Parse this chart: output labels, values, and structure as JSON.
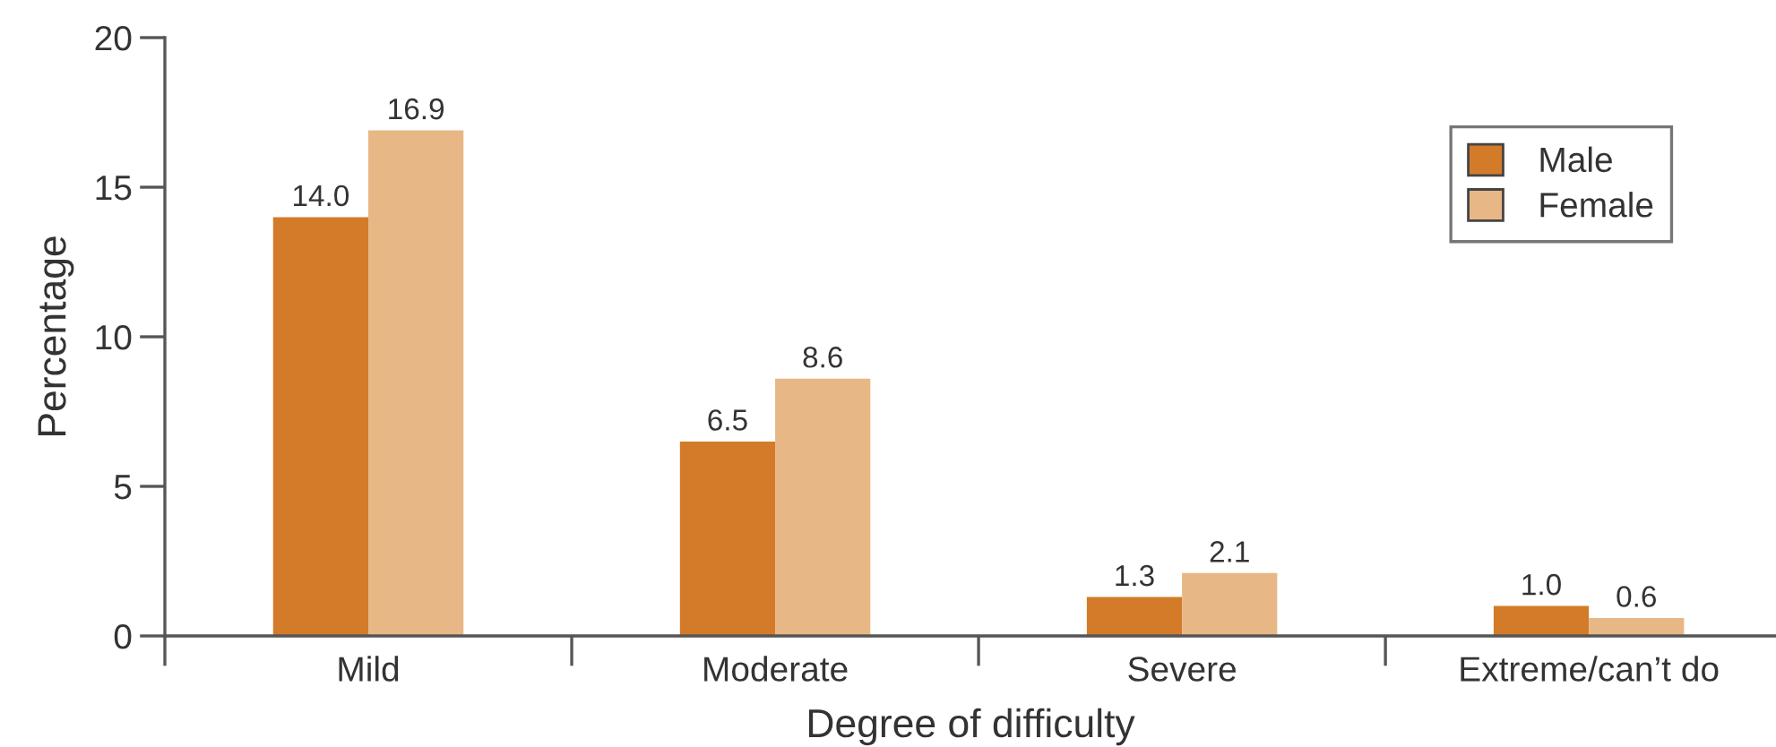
{
  "chart_data": {
    "type": "bar",
    "xlabel": "Degree of difficulty",
    "ylabel": "Percentage",
    "categories": [
      "Mild",
      "Moderate",
      "Severe",
      "Extreme/can’t do"
    ],
    "series": [
      {
        "name": "Male",
        "color": "#d37b28",
        "values": [
          14.0,
          6.5,
          1.3,
          1.0
        ],
        "value_labels": [
          "14.0",
          "6.5",
          "1.3",
          "1.0"
        ]
      },
      {
        "name": "Female",
        "color": "#e8b786",
        "values": [
          16.9,
          8.6,
          2.1,
          0.6
        ],
        "value_labels": [
          "16.9",
          "8.6",
          "2.1",
          "0.6"
        ]
      }
    ],
    "ylim": [
      0,
      20
    ],
    "yticks": [
      0,
      5,
      10,
      15,
      20
    ],
    "grid": false,
    "legend": "top right"
  }
}
